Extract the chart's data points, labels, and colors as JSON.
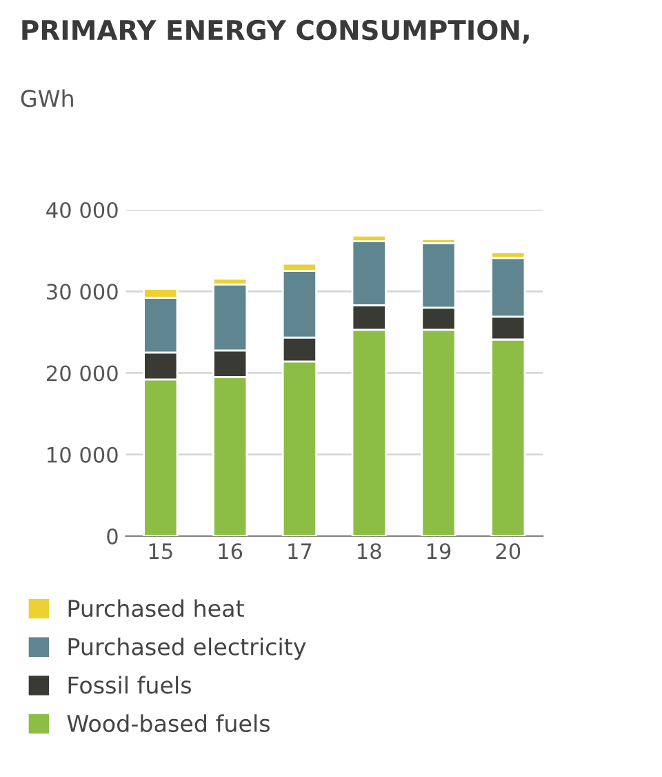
{
  "chart_data": {
    "type": "bar",
    "stacked": true,
    "title": "PRIMARY ENERGY CONSUMPTION,",
    "subtitle": "GWh",
    "categories": [
      "15",
      "16",
      "17",
      "18",
      "19",
      "20"
    ],
    "series": [
      {
        "name": "Wood-based fuels",
        "color": "#8cbe45",
        "values": [
          19200,
          19500,
          21400,
          25300,
          25300,
          24100
        ]
      },
      {
        "name": "Fossil fuels",
        "color": "#3a3a35",
        "values": [
          3300,
          3250,
          2950,
          3000,
          2700,
          2800
        ]
      },
      {
        "name": "Purchased electricity",
        "color": "#5f8690",
        "values": [
          6700,
          8100,
          8150,
          7850,
          7900,
          7200
        ]
      },
      {
        "name": "Purchased heat",
        "color": "#ecd133",
        "values": [
          1100,
          700,
          900,
          700,
          500,
          700
        ]
      }
    ],
    "ylim": [
      0,
      40000
    ],
    "yticks": [
      {
        "value": 0,
        "label": "0"
      },
      {
        "value": 10000,
        "label": "10 000"
      },
      {
        "value": 20000,
        "label": "20 000"
      },
      {
        "value": 30000,
        "label": "30 000"
      },
      {
        "value": 40000,
        "label": "40 000"
      }
    ],
    "grid": "y",
    "legend": "bottom"
  }
}
